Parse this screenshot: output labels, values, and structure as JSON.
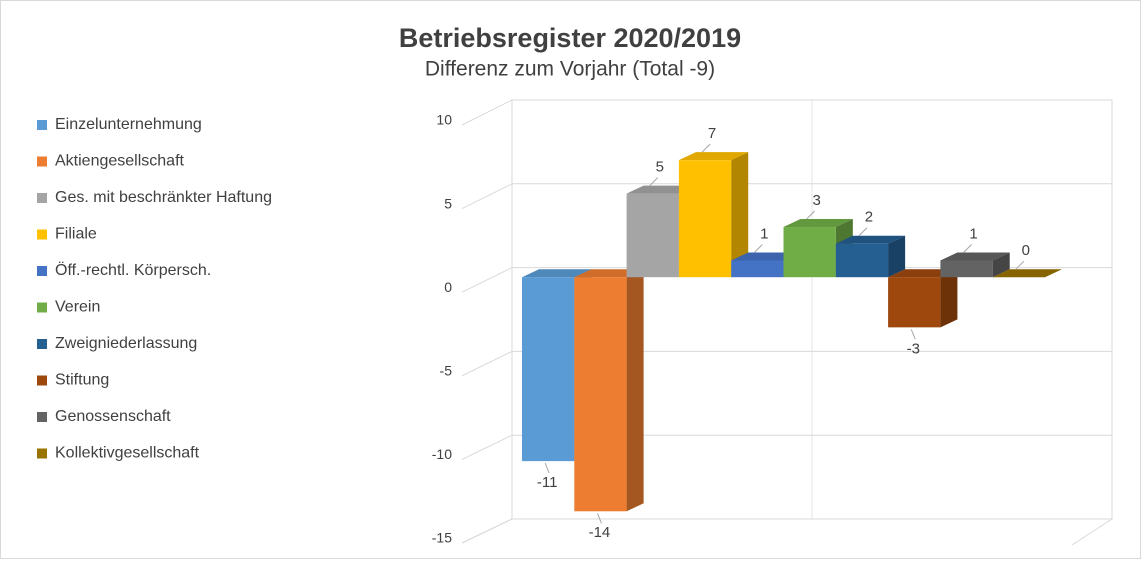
{
  "chart_data": {
    "type": "bar3d",
    "title": "Betriebsregister 2020/2019",
    "subtitle": "Differenz zum Vorjahr (Total -9)",
    "series": [
      {
        "name": "Einzelunternehmung",
        "color": "#5b9bd5",
        "values": [
          -11
        ]
      },
      {
        "name": "Aktiengesellschaft",
        "color": "#ed7d31",
        "values": [
          -14
        ]
      },
      {
        "name": "Ges. mit beschränkter Haftung",
        "color": "#a5a5a5",
        "values": [
          5
        ]
      },
      {
        "name": "Filiale",
        "color": "#ffc000",
        "values": [
          7
        ]
      },
      {
        "name": "Öff.-rechtl. Körpersch.",
        "color": "#4472c4",
        "values": [
          1
        ]
      },
      {
        "name": "Verein",
        "color": "#70ad47",
        "values": [
          3
        ]
      },
      {
        "name": "Zweigniederlassung",
        "color": "#255e91",
        "values": [
          2
        ]
      },
      {
        "name": "Stiftung",
        "color": "#9e480e",
        "values": [
          -3
        ]
      },
      {
        "name": "Genossenschaft",
        "color": "#636363",
        "values": [
          1
        ]
      },
      {
        "name": "Kollektivgesellschaft",
        "color": "#997300",
        "values": [
          0
        ]
      }
    ],
    "ylim": [
      -15,
      10
    ],
    "yticks": [
      -15,
      -10,
      -5,
      0,
      5,
      10
    ],
    "grid": true,
    "legend": "left"
  }
}
